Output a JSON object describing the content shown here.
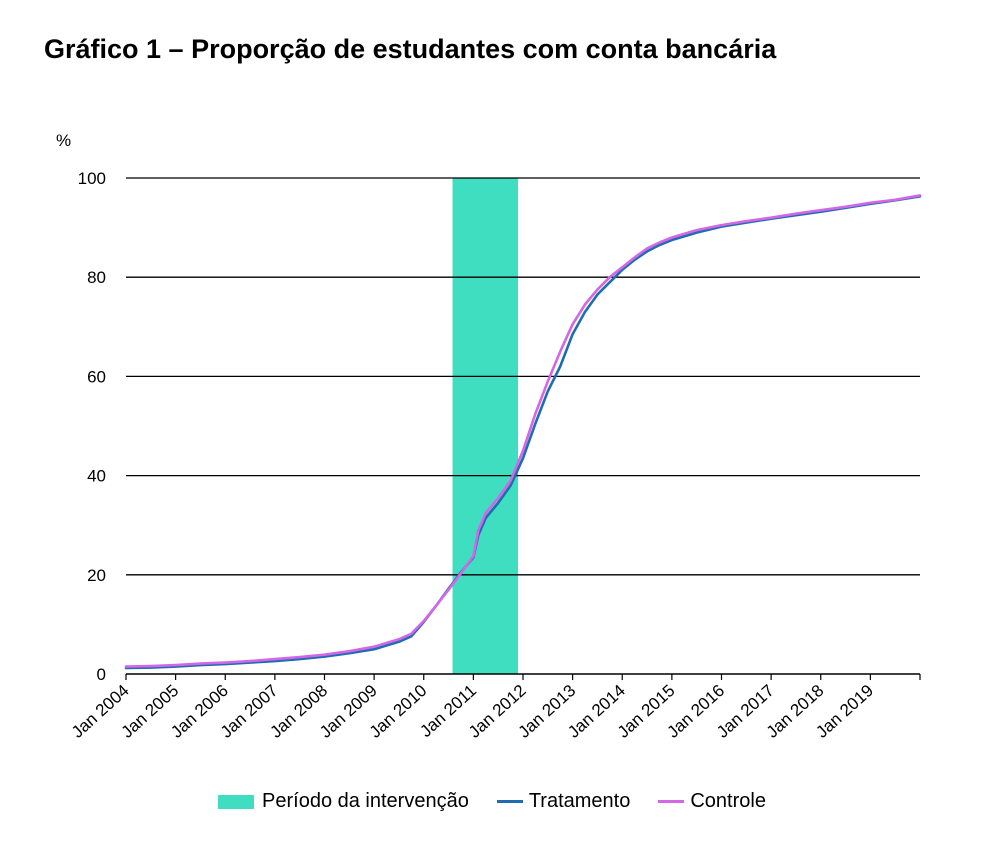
{
  "title": "Gráfico 1 – Proporção de estudantes com conta bancária",
  "colors": {
    "intervention": "#40DEC0",
    "treatment": "#1F6CB0",
    "control": "#D267E8",
    "grid": "#000000"
  },
  "chart_data": {
    "type": "line",
    "unit_label": "%",
    "ylim": [
      0,
      100
    ],
    "yticks": [
      "0",
      "20",
      "40",
      "60",
      "80",
      "100"
    ],
    "xlim": [
      2004.0,
      2020.0
    ],
    "xticks": [
      "Jan 2004",
      "Jan 2005",
      "Jan 2006",
      "Jan 2007",
      "Jan 2008",
      "Jan 2009",
      "Jan 2010",
      "Jan 2011",
      "Jan 2012",
      "Jan 2013",
      "Jan 2014",
      "Jan 2015",
      "Jan 2016",
      "Jan 2017",
      "Jan 2018",
      "Jan 2019"
    ],
    "grid": true,
    "intervention_period": {
      "label": "Período da intervenção",
      "start": 2010.58,
      "end": 2011.9
    },
    "x": [
      2004.0,
      2004.5,
      2005.0,
      2005.5,
      2006.0,
      2006.5,
      2007.0,
      2007.5,
      2008.0,
      2008.5,
      2009.0,
      2009.5,
      2009.75,
      2010.0,
      2010.25,
      2010.5,
      2010.75,
      2011.0,
      2011.1,
      2011.25,
      2011.5,
      2011.75,
      2012.0,
      2012.25,
      2012.5,
      2012.75,
      2013.0,
      2013.25,
      2013.5,
      2013.75,
      2014.0,
      2014.25,
      2014.5,
      2014.75,
      2015.0,
      2015.5,
      2016.0,
      2016.5,
      2017.0,
      2017.5,
      2018.0,
      2018.5,
      2019.0,
      2019.5,
      2020.0
    ],
    "series": [
      {
        "name": "Tratamento",
        "values": [
          1.2,
          1.3,
          1.5,
          1.8,
          2.0,
          2.3,
          2.6,
          3.0,
          3.5,
          4.2,
          5.0,
          6.5,
          7.6,
          10.5,
          13.8,
          17.2,
          20.5,
          23.5,
          28.0,
          31.5,
          34.5,
          38.0,
          43.5,
          50.5,
          57.0,
          62.0,
          68.5,
          73.0,
          76.5,
          79.0,
          81.5,
          83.5,
          85.2,
          86.5,
          87.5,
          89.0,
          90.2,
          91.0,
          91.8,
          92.5,
          93.2,
          94.0,
          94.8,
          95.5,
          96.3
        ]
      },
      {
        "name": "Controle",
        "values": [
          1.5,
          1.6,
          1.8,
          2.1,
          2.3,
          2.6,
          3.0,
          3.4,
          3.9,
          4.6,
          5.5,
          7.0,
          8.1,
          10.7,
          13.8,
          17.0,
          20.3,
          23.8,
          29.0,
          32.5,
          35.5,
          39.0,
          45.0,
          52.5,
          59.0,
          65.0,
          70.5,
          74.5,
          77.5,
          80.0,
          82.0,
          84.0,
          85.8,
          87.0,
          88.0,
          89.5,
          90.5,
          91.3,
          92.0,
          92.8,
          93.5,
          94.2,
          95.0,
          95.6,
          96.5
        ]
      }
    ]
  }
}
